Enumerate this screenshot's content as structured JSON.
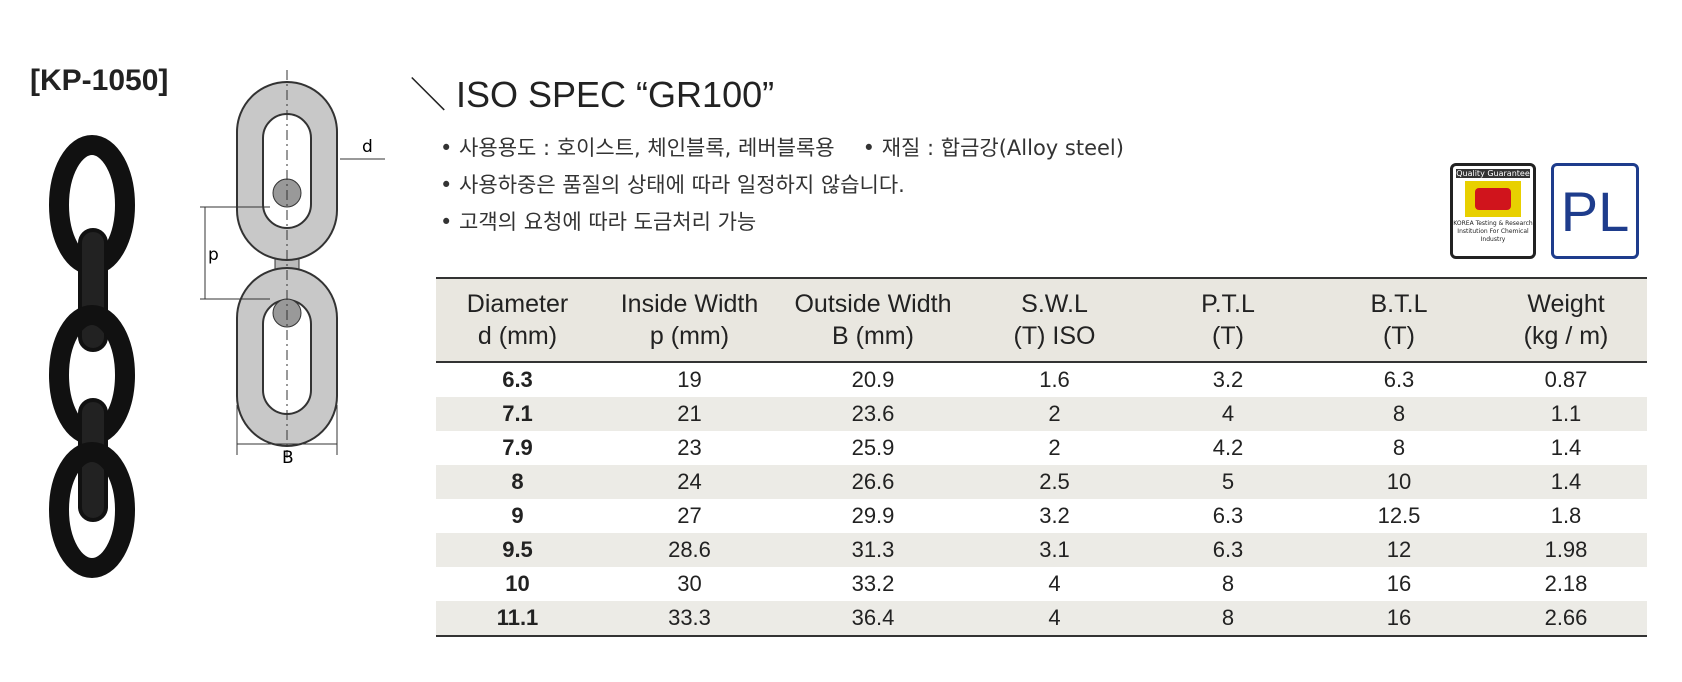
{
  "header": {
    "model": "[KP-1050]",
    "title": "＼ ISO SPEC “GR100”"
  },
  "bullets": [
    [
      "• 사용용도 : 호이스트, 체인블록, 레버블록용",
      "• 재질 : 합금강(Alloy steel)"
    ],
    [
      "• 사용하중은 품질의 상태에 따라 일정하지 않습니다."
    ],
    [
      "• 고객의 요청에 따라 도금처리 가능"
    ]
  ],
  "diagram": {
    "labels": [
      "d",
      "p",
      "B"
    ]
  },
  "logos": {
    "quality": {
      "title": "Quality Guarantee",
      "caption": "KOREA Testing & Research Institution For Chemical Industry"
    },
    "pl": "PL"
  },
  "table": {
    "headers": [
      [
        "Diameter",
        "d (mm)"
      ],
      [
        "Inside Width",
        "p (mm)"
      ],
      [
        "Outside Width",
        "B (mm)"
      ],
      [
        "S.W.L",
        "(T) ISO"
      ],
      [
        "P.T.L",
        "(T)"
      ],
      [
        "B.T.L",
        "(T)"
      ],
      [
        "Weight",
        "(kg / m)"
      ]
    ],
    "rows": [
      [
        "6.3",
        "19",
        "20.9",
        "1.6",
        "3.2",
        "6.3",
        "0.87"
      ],
      [
        "7.1",
        "21",
        "23.6",
        "2",
        "4",
        "8",
        "1.1"
      ],
      [
        "7.9",
        "23",
        "25.9",
        "2",
        "4.2",
        "8",
        "1.4"
      ],
      [
        "8",
        "24",
        "26.6",
        "2.5",
        "5",
        "10",
        "1.4"
      ],
      [
        "9",
        "27",
        "29.9",
        "3.2",
        "6.3",
        "12.5",
        "1.8"
      ],
      [
        "9.5",
        "28.6",
        "31.3",
        "3.1",
        "6.3",
        "12",
        "1.98"
      ],
      [
        "10",
        "30",
        "33.2",
        "4",
        "8",
        "16",
        "2.18"
      ],
      [
        "11.1",
        "33.3",
        "36.4",
        "4",
        "8",
        "16",
        "2.66"
      ]
    ]
  }
}
